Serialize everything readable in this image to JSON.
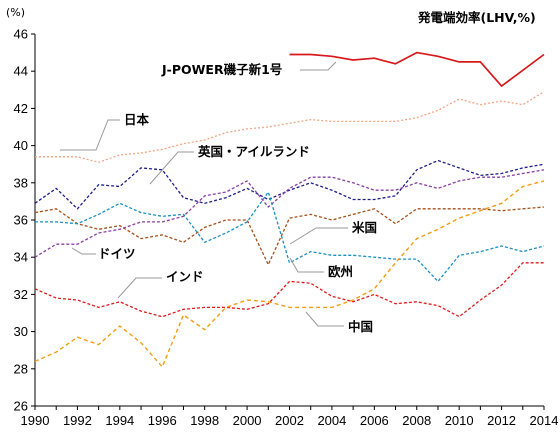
{
  "chart_data": {
    "type": "line",
    "title": "発電端効率(LHV,%)",
    "ylabel": "(%)",
    "ylim": [
      26,
      46
    ],
    "yticks": [
      26,
      28,
      30,
      32,
      34,
      36,
      38,
      40,
      42,
      44,
      46
    ],
    "xlim": [
      1990,
      2014
    ],
    "xticks": [
      1990,
      1992,
      1994,
      1996,
      1998,
      2000,
      2002,
      2004,
      2006,
      2008,
      2010,
      2012,
      2014
    ],
    "grid": false,
    "series": [
      {
        "name": "J-POWER磯子新1号",
        "color": "#d7191c",
        "dash": "",
        "width": 1.7,
        "x": [
          2002,
          2003,
          2004,
          2005,
          2006,
          2007,
          2008,
          2009,
          2010,
          2011,
          2012,
          2014
        ],
        "values": [
          44.9,
          44.9,
          44.8,
          44.6,
          44.7,
          44.4,
          45.0,
          44.8,
          44.5,
          44.5,
          43.2,
          44.9
        ]
      },
      {
        "name": "日本",
        "color": "#f4a582",
        "dash": "2,2",
        "width": 1.3,
        "x": [
          1990,
          1991,
          1992,
          1993,
          1994,
          1995,
          1996,
          1997,
          1998,
          1999,
          2000,
          2001,
          2002,
          2003,
          2004,
          2005,
          2006,
          2007,
          2008,
          2009,
          2010,
          2011,
          2012,
          2013,
          2014
        ],
        "values": [
          39.4,
          39.4,
          39.4,
          39.1,
          39.5,
          39.6,
          39.8,
          40.1,
          40.3,
          40.7,
          40.9,
          41.0,
          41.2,
          41.4,
          41.3,
          41.3,
          41.3,
          41.3,
          41.5,
          41.9,
          42.5,
          42.2,
          42.4,
          42.2,
          42.9
        ]
      },
      {
        "name": "英国・アイルランド",
        "color": "#1f1f8c",
        "dash": "3,2",
        "width": 1.3,
        "x": [
          1990,
          1991,
          1992,
          1993,
          1994,
          1995,
          1996,
          1997,
          1998,
          1999,
          2000,
          2001,
          2002,
          2003,
          2004,
          2005,
          2006,
          2007,
          2008,
          2009,
          2010,
          2011,
          2012,
          2013,
          2014
        ],
        "values": [
          36.9,
          37.7,
          36.6,
          37.9,
          37.8,
          38.8,
          38.7,
          37.2,
          36.9,
          37.2,
          37.7,
          37.1,
          37.6,
          38.0,
          37.6,
          37.1,
          37.1,
          37.3,
          38.7,
          39.2,
          38.8,
          38.4,
          38.5,
          38.8,
          39.0
        ]
      },
      {
        "name": "米国",
        "color": "#a6511a",
        "dash": "3,2",
        "width": 1.3,
        "x": [
          1990,
          1991,
          1992,
          1993,
          1994,
          1995,
          1996,
          1997,
          1998,
          1999,
          2000,
          2001,
          2002,
          2003,
          2004,
          2005,
          2006,
          2007,
          2008,
          2009,
          2010,
          2011,
          2012,
          2013,
          2014
        ],
        "values": [
          36.4,
          36.6,
          35.8,
          35.5,
          35.7,
          35.0,
          35.2,
          34.8,
          35.6,
          36.0,
          36.0,
          33.6,
          36.1,
          36.3,
          36.0,
          36.3,
          36.6,
          35.8,
          36.6,
          36.6,
          36.6,
          36.6,
          36.5,
          36.6,
          36.7
        ]
      },
      {
        "name": "ドイツ",
        "color": "#8a3fa5",
        "dash": "3,2",
        "width": 1.3,
        "x": [
          1990,
          1991,
          1992,
          1993,
          1994,
          1995,
          1996,
          1997,
          1998,
          1999,
          2000,
          2001,
          2002,
          2003,
          2004,
          2005,
          2006,
          2007,
          2008,
          2009,
          2010,
          2011,
          2012,
          2013,
          2014
        ],
        "values": [
          34.0,
          34.7,
          34.7,
          35.3,
          35.5,
          35.9,
          35.9,
          36.2,
          37.3,
          37.5,
          38.1,
          36.7,
          37.7,
          38.3,
          38.3,
          38.0,
          37.6,
          37.6,
          38.0,
          37.7,
          38.1,
          38.3,
          38.3,
          38.5,
          38.7
        ]
      },
      {
        "name": "欧州",
        "color": "#1a8fc2",
        "dash": "3,2",
        "width": 1.3,
        "x": [
          1990,
          1991,
          1992,
          1993,
          1994,
          1995,
          1996,
          1997,
          1998,
          1999,
          2000,
          2001,
          2002,
          2003,
          2004,
          2005,
          2006,
          2007,
          2008,
          2009,
          2010,
          2011,
          2012,
          2013,
          2014
        ],
        "values": [
          35.9,
          35.9,
          35.8,
          36.3,
          36.9,
          36.4,
          36.2,
          36.3,
          34.8,
          35.3,
          35.9,
          37.5,
          33.7,
          34.3,
          34.1,
          34.1,
          34.0,
          33.9,
          33.9,
          32.7,
          34.1,
          34.3,
          34.6,
          34.3,
          34.6
        ]
      },
      {
        "name": "インド",
        "color": "#e31a1c",
        "dash": "3,2",
        "width": 1.3,
        "x": [
          1990,
          1991,
          1992,
          1993,
          1994,
          1995,
          1996,
          1997,
          1998,
          1999,
          2000,
          2001,
          2002,
          2003,
          2004,
          2005,
          2006,
          2007,
          2008,
          2009,
          2010,
          2011,
          2012,
          2013,
          2014
        ],
        "values": [
          32.3,
          31.8,
          31.7,
          31.3,
          31.6,
          31.1,
          30.8,
          31.2,
          31.3,
          31.3,
          31.2,
          31.5,
          32.7,
          32.6,
          31.9,
          31.6,
          32.0,
          31.5,
          31.6,
          31.4,
          30.8,
          31.7,
          32.5,
          33.7,
          33.7
        ]
      },
      {
        "name": "中国",
        "color": "#f39c12",
        "dash": "4,3",
        "width": 1.4,
        "x": [
          1990,
          1991,
          1992,
          1993,
          1994,
          1995,
          1996,
          1997,
          1998,
          1999,
          2000,
          2001,
          2002,
          2003,
          2004,
          2005,
          2006,
          2007,
          2008,
          2009,
          2010,
          2011,
          2012,
          2013,
          2014
        ],
        "values": [
          28.4,
          28.9,
          29.7,
          29.3,
          30.3,
          29.4,
          28.1,
          30.9,
          30.1,
          31.3,
          31.7,
          31.6,
          31.3,
          31.3,
          31.3,
          31.7,
          32.3,
          33.7,
          35.0,
          35.5,
          36.1,
          36.5,
          36.9,
          37.8,
          38.1
        ]
      }
    ],
    "labels": [
      "J-POWER磯子新1号",
      "日本",
      "英国・アイルランド",
      "米国",
      "ドイツ",
      "欧州",
      "インド",
      "中国"
    ]
  }
}
